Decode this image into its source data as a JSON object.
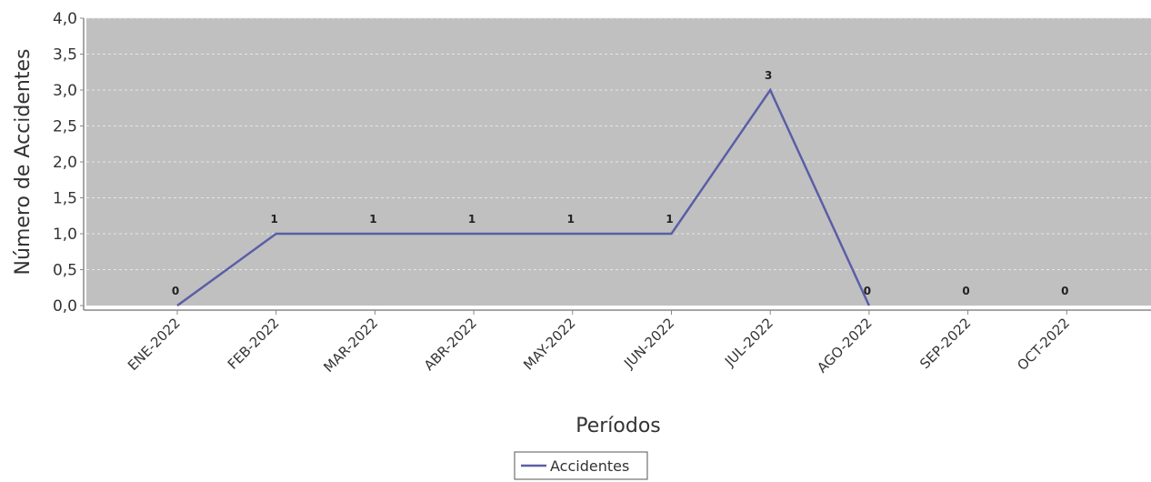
{
  "chart_data": {
    "type": "line",
    "title": "",
    "xlabel": "Períodos",
    "ylabel": "Número de Accidentes",
    "categories": [
      "ENE-2022",
      "FEB-2022",
      "MAR-2022",
      "ABR-2022",
      "MAY-2022",
      "JUN-2022",
      "JUL-2022",
      "AGO-2022",
      "SEP-2022",
      "OCT-2022"
    ],
    "series": [
      {
        "name": "Accidentes",
        "values": [
          0,
          1,
          1,
          1,
          1,
          1,
          3,
          0,
          null,
          null
        ],
        "data_labels": [
          "0",
          "1",
          "1",
          "1",
          "1",
          "1",
          "3",
          "0",
          "0",
          "0"
        ],
        "color": "#5b5ea6"
      }
    ],
    "ylim": [
      0,
      4.0
    ],
    "yticks": [
      "0,0",
      "0,5",
      "1,0",
      "1,5",
      "2,0",
      "2,5",
      "3,0",
      "3,5",
      "4,0"
    ],
    "grid": true,
    "plot_background": "#c0c0c0",
    "legend_position": "bottom-center"
  }
}
